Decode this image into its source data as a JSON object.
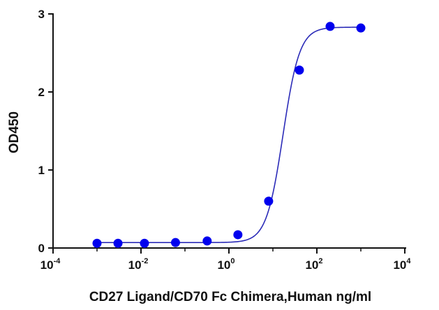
{
  "chart_data": {
    "type": "scatter",
    "xlabel": "CD27 Ligand/CD70 Fc Chimera,Human ng/ml",
    "ylabel": "OD450",
    "x_scale": "log10",
    "xlim": [
      0.0001,
      10000
    ],
    "ylim": [
      0,
      3
    ],
    "x_ticks": [
      {
        "value": 0.0001,
        "base": "10",
        "exp": "-4"
      },
      {
        "value": 0.01,
        "base": "10",
        "exp": "-2"
      },
      {
        "value": 1,
        "base": "10",
        "exp": "0"
      },
      {
        "value": 100,
        "base": "10",
        "exp": "2"
      },
      {
        "value": 10000,
        "base": "10",
        "exp": "4"
      }
    ],
    "y_ticks": [
      {
        "value": 0,
        "label": "0"
      },
      {
        "value": 1,
        "label": "1"
      },
      {
        "value": 2,
        "label": "2"
      },
      {
        "value": 3,
        "label": "3"
      }
    ],
    "points": [
      {
        "x": 0.001,
        "y": 0.06
      },
      {
        "x": 0.003,
        "y": 0.06
      },
      {
        "x": 0.012,
        "y": 0.06
      },
      {
        "x": 0.061,
        "y": 0.07
      },
      {
        "x": 0.32,
        "y": 0.09
      },
      {
        "x": 1.6,
        "y": 0.17
      },
      {
        "x": 8,
        "y": 0.6
      },
      {
        "x": 40,
        "y": 2.28
      },
      {
        "x": 200,
        "y": 2.84
      },
      {
        "x": 1000,
        "y": 2.82
      }
    ],
    "fit": {
      "bottom": 0.07,
      "top": 2.83,
      "ec50": 17,
      "hill": 2.3
    },
    "marker_color": "#0000ee",
    "line_color": "#2b2bb8",
    "grid": false,
    "legend": "none"
  }
}
